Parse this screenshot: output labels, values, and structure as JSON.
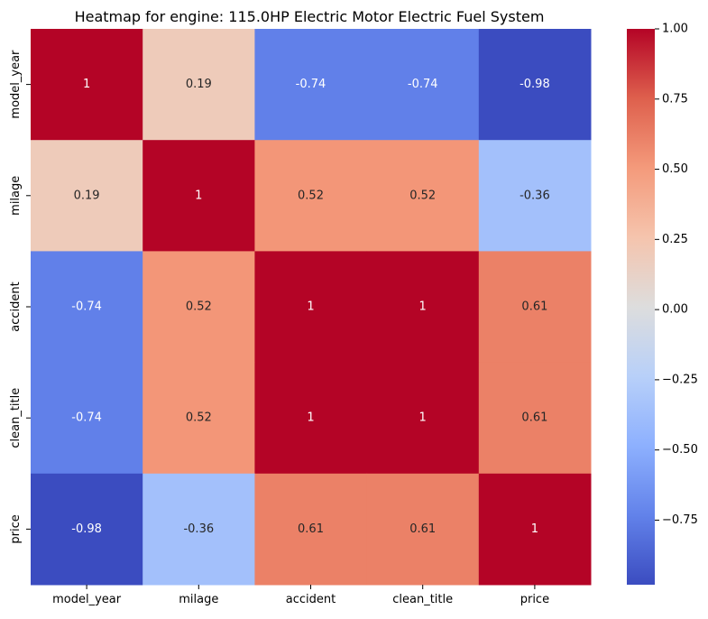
{
  "chart_data": {
    "type": "heatmap",
    "title": "Heatmap for engine: 115.0HP Electric Motor Electric Fuel System",
    "xlabel": "",
    "ylabel": "",
    "x_categories": [
      "model_year",
      "milage",
      "accident",
      "clean_title",
      "price"
    ],
    "y_categories": [
      "model_year",
      "milage",
      "accident",
      "clean_title",
      "price"
    ],
    "values": [
      [
        1,
        0.19,
        -0.74,
        -0.74,
        -0.98
      ],
      [
        0.19,
        1,
        0.52,
        0.52,
        -0.36
      ],
      [
        -0.74,
        0.52,
        1,
        1,
        0.61
      ],
      [
        -0.74,
        0.52,
        1,
        1,
        0.61
      ],
      [
        -0.98,
        -0.36,
        0.61,
        0.61,
        1
      ]
    ],
    "annotations": [
      [
        "1",
        "0.19",
        "-0.74",
        "-0.74",
        "-0.98"
      ],
      [
        "0.19",
        "1",
        "0.52",
        "0.52",
        "-0.36"
      ],
      [
        "-0.74",
        "0.52",
        "1",
        "1",
        "0.61"
      ],
      [
        "-0.74",
        "0.52",
        "1",
        "1",
        "0.61"
      ],
      [
        "-0.98",
        "-0.36",
        "0.61",
        "0.61",
        "1"
      ]
    ],
    "colormap": "coolwarm",
    "color_range": [
      -0.98,
      1.0
    ],
    "colorbar_ticks": [
      1.0,
      0.75,
      0.5,
      0.25,
      0.0,
      -0.25,
      -0.5,
      -0.75
    ],
    "colorbar_tick_labels": [
      "1.00",
      "0.75",
      "0.50",
      "0.25",
      "0.00",
      "−0.25",
      "−0.50",
      "−0.75"
    ],
    "grid": false,
    "legend": "colorbar-right"
  }
}
